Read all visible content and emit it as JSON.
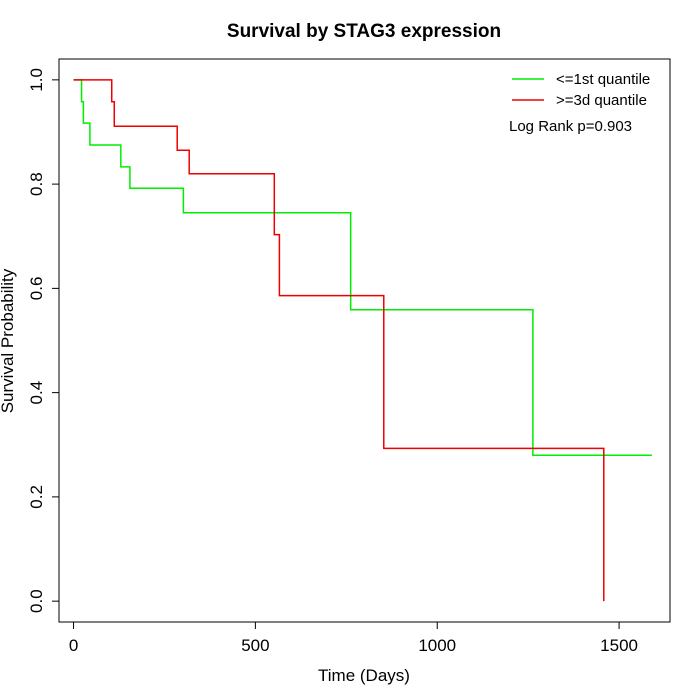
{
  "chart_data": {
    "type": "line",
    "title": "Survival by STAG3 expression",
    "xlabel": "Time (Days)",
    "ylabel": "Survival Probability",
    "xlim": [
      -40,
      1640
    ],
    "ylim": [
      -0.04,
      1.04
    ],
    "xticks": [
      0,
      500,
      1000,
      1500
    ],
    "yticks": [
      0.0,
      0.2,
      0.4,
      0.6,
      0.8,
      1.0
    ],
    "xtick_labels": [
      "0",
      "500",
      "1000",
      "1500"
    ],
    "ytick_labels": [
      "0.0",
      "0.2",
      "0.4",
      "0.6",
      "0.8",
      "1.0"
    ],
    "legend_position": "top-right",
    "annotation": "Log Rank p=0.903",
    "series": [
      {
        "name": "<=1st quantile",
        "color": "#00ee00",
        "points": [
          [
            0,
            1.0
          ],
          [
            22,
            1.0
          ],
          [
            22,
            0.958
          ],
          [
            27,
            0.958
          ],
          [
            27,
            0.917
          ],
          [
            45,
            0.917
          ],
          [
            45,
            0.875
          ],
          [
            130,
            0.875
          ],
          [
            130,
            0.833
          ],
          [
            155,
            0.833
          ],
          [
            155,
            0.792
          ],
          [
            302,
            0.792
          ],
          [
            302,
            0.745
          ],
          [
            762,
            0.745
          ],
          [
            762,
            0.559
          ],
          [
            1263,
            0.559
          ],
          [
            1263,
            0.28
          ],
          [
            1590,
            0.28
          ]
        ]
      },
      {
        "name": ">=3d quantile",
        "color": "#ee0000",
        "points": [
          [
            0,
            1.0
          ],
          [
            105,
            1.0
          ],
          [
            105,
            0.958
          ],
          [
            112,
            0.958
          ],
          [
            112,
            0.911
          ],
          [
            285,
            0.911
          ],
          [
            285,
            0.865
          ],
          [
            318,
            0.865
          ],
          [
            318,
            0.82
          ],
          [
            552,
            0.82
          ],
          [
            552,
            0.703
          ],
          [
            566,
            0.703
          ],
          [
            566,
            0.586
          ],
          [
            853,
            0.586
          ],
          [
            853,
            0.293
          ],
          [
            1458,
            0.293
          ],
          [
            1458,
            0.0
          ]
        ]
      }
    ]
  }
}
